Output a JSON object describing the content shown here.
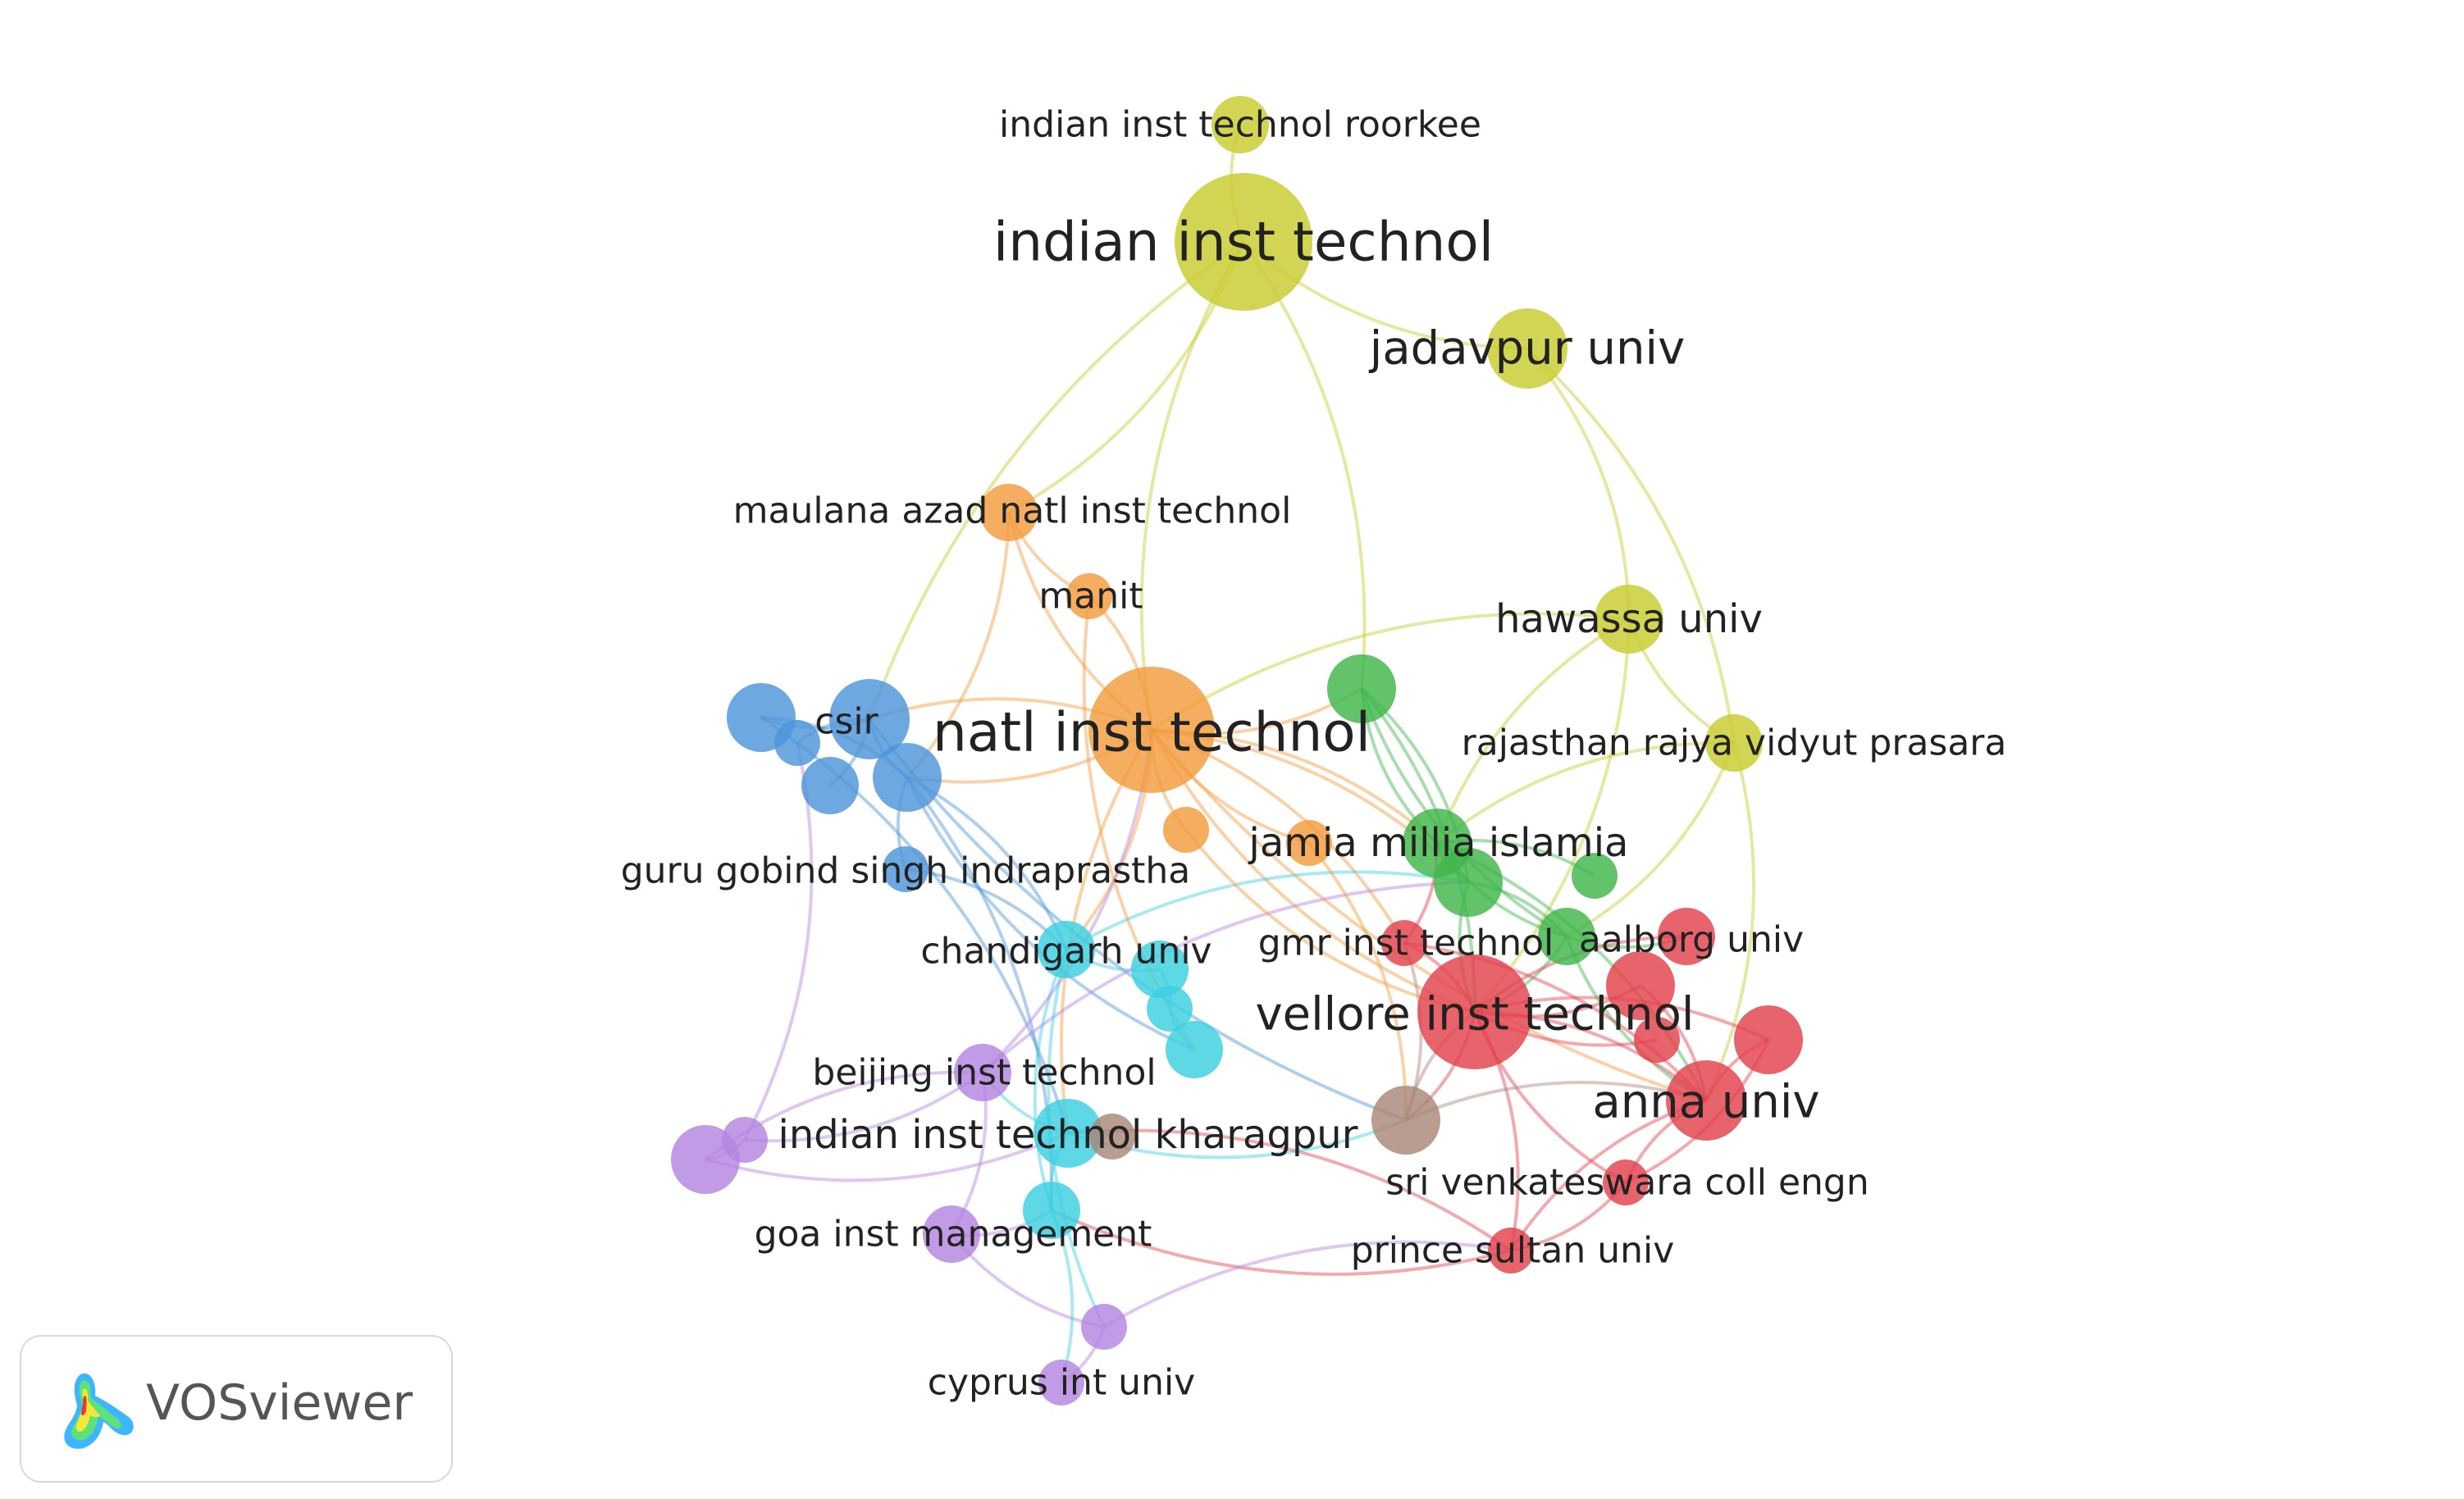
{
  "app": {
    "name": "VOSviewer"
  },
  "network": {
    "nodes": [
      {
        "id": "iit",
        "label": "indian inst technol",
        "cluster": "yellow",
        "weight": 10,
        "label_size": "xl"
      },
      {
        "id": "iitr",
        "label": "indian inst technol roorkee",
        "cluster": "yellow",
        "weight": 3,
        "label_size": "m"
      },
      {
        "id": "jadavpur",
        "label": "jadavpur univ",
        "cluster": "yellow",
        "weight": 5,
        "label_size": "l"
      },
      {
        "id": "hawassa",
        "label": "hawassa univ",
        "cluster": "yellow",
        "weight": 4,
        "label_size": "ml"
      },
      {
        "id": "rajasthan",
        "label": "rajasthan rajya vidyut prasara",
        "cluster": "yellow",
        "weight": 3,
        "label_size": "m"
      },
      {
        "id": "manit_azad",
        "label": "maulana azad natl inst technol",
        "cluster": "orange",
        "weight": 3,
        "label_size": "m"
      },
      {
        "id": "manit",
        "label": "manit",
        "cluster": "orange",
        "weight": 2,
        "label_size": "m"
      },
      {
        "id": "nit",
        "label": "natl inst technol",
        "cluster": "orange",
        "weight": 9,
        "label_size": "xl"
      },
      {
        "id": "orange_small",
        "label": "",
        "cluster": "orange",
        "weight": 2
      },
      {
        "id": "orange_small2",
        "label": "",
        "cluster": "orange",
        "weight": 2
      },
      {
        "id": "csir",
        "label": "csir",
        "cluster": "blue",
        "weight": 5,
        "label_size": "m"
      },
      {
        "id": "blue1",
        "label": "",
        "cluster": "blue",
        "weight": 4
      },
      {
        "id": "blue2",
        "label": "",
        "cluster": "blue",
        "weight": 2
      },
      {
        "id": "blue3",
        "label": "",
        "cluster": "blue",
        "weight": 3
      },
      {
        "id": "blue4",
        "label": "",
        "cluster": "blue",
        "weight": 4
      },
      {
        "id": "ggsip",
        "label": "guru gobind singh indraprastha",
        "cluster": "blue",
        "weight": 2,
        "label_size": "m"
      },
      {
        "id": "green1",
        "label": "",
        "cluster": "green",
        "weight": 4
      },
      {
        "id": "jamia",
        "label": "jamia millia islamia",
        "cluster": "green",
        "weight": 4,
        "label_size": "ml"
      },
      {
        "id": "green2",
        "label": "",
        "cluster": "green",
        "weight": 4
      },
      {
        "id": "green3",
        "label": "",
        "cluster": "green",
        "weight": 2
      },
      {
        "id": "green4",
        "label": "",
        "cluster": "green",
        "weight": 3
      },
      {
        "id": "green5",
        "label": "",
        "cluster": "green",
        "weight": 3
      },
      {
        "id": "gmr",
        "label": "gmr inst technol",
        "cluster": "red",
        "weight": 2,
        "label_size": "m"
      },
      {
        "id": "aalborg",
        "label": "aalborg univ",
        "cluster": "red",
        "weight": 3,
        "label_size": "m"
      },
      {
        "id": "vit",
        "label": "vellore inst technol",
        "cluster": "red",
        "weight": 8,
        "label_size": "l"
      },
      {
        "id": "red1",
        "label": "",
        "cluster": "red",
        "weight": 4
      },
      {
        "id": "red2",
        "label": "",
        "cluster": "red",
        "weight": 4
      },
      {
        "id": "red3",
        "label": "",
        "cluster": "red",
        "weight": 2
      },
      {
        "id": "anna",
        "label": "anna univ",
        "cluster": "red",
        "weight": 5,
        "label_size": "l"
      },
      {
        "id": "svce",
        "label": "sri venkateswara coll engn",
        "cluster": "red",
        "weight": 2,
        "label_size": "m"
      },
      {
        "id": "prince",
        "label": "prince sultan univ",
        "cluster": "red",
        "weight": 2,
        "label_size": "m"
      },
      {
        "id": "chandigarh",
        "label": "chandigarh univ",
        "cluster": "cyan",
        "weight": 3,
        "label_size": "m"
      },
      {
        "id": "cyan1",
        "label": "",
        "cluster": "cyan",
        "weight": 3
      },
      {
        "id": "cyan2",
        "label": "",
        "cluster": "cyan",
        "weight": 2
      },
      {
        "id": "cyan3",
        "label": "",
        "cluster": "cyan",
        "weight": 3
      },
      {
        "id": "iitkgp",
        "label": "indian inst technol kharagpur",
        "cluster": "cyan",
        "weight": 4,
        "label_size": "ml"
      },
      {
        "id": "cyan4",
        "label": "",
        "cluster": "cyan",
        "weight": 3
      },
      {
        "id": "brown1",
        "label": "",
        "cluster": "brown",
        "weight": 4
      },
      {
        "id": "brown2",
        "label": "",
        "cluster": "brown",
        "weight": 2
      },
      {
        "id": "beijing",
        "label": "beijing inst technol",
        "cluster": "purple",
        "weight": 3,
        "label_size": "m"
      },
      {
        "id": "purple1",
        "label": "",
        "cluster": "purple",
        "weight": 4
      },
      {
        "id": "purple2",
        "label": "",
        "cluster": "purple",
        "weight": 2
      },
      {
        "id": "goa",
        "label": "goa inst management",
        "cluster": "purple",
        "weight": 3,
        "label_size": "m"
      },
      {
        "id": "purple3",
        "label": "",
        "cluster": "purple",
        "weight": 2
      },
      {
        "id": "cyprus",
        "label": "cyprus int univ",
        "cluster": "purple",
        "weight": 2,
        "label_size": "m"
      }
    ],
    "links": [
      [
        "iit",
        "iitr"
      ],
      [
        "iit",
        "jadavpur"
      ],
      [
        "iit",
        "green1"
      ],
      [
        "iit",
        "nit"
      ],
      [
        "iit",
        "manit_azad"
      ],
      [
        "iit",
        "csir"
      ],
      [
        "jadavpur",
        "hawassa"
      ],
      [
        "hawassa",
        "rajasthan"
      ],
      [
        "jadavpur",
        "rajasthan"
      ],
      [
        "hawassa",
        "jamia"
      ],
      [
        "hawassa",
        "vit"
      ],
      [
        "hawassa",
        "nit"
      ],
      [
        "rajasthan",
        "anna"
      ],
      [
        "rajasthan",
        "jamia"
      ],
      [
        "rajasthan",
        "green4"
      ],
      [
        "manit_azad",
        "nit"
      ],
      [
        "manit",
        "nit"
      ],
      [
        "manit_azad",
        "manit"
      ],
      [
        "manit_azad",
        "blue4"
      ],
      [
        "nit",
        "csir"
      ],
      [
        "nit",
        "blue4"
      ],
      [
        "nit",
        "green1"
      ],
      [
        "nit",
        "jamia"
      ],
      [
        "nit",
        "vit"
      ],
      [
        "nit",
        "green2"
      ],
      [
        "nit",
        "orange_small"
      ],
      [
        "nit",
        "gmr"
      ],
      [
        "nit",
        "anna"
      ],
      [
        "nit",
        "chandigarh"
      ],
      [
        "nit",
        "iitkgp"
      ],
      [
        "csir",
        "blue1"
      ],
      [
        "csir",
        "blue2"
      ],
      [
        "csir",
        "blue3"
      ],
      [
        "csir",
        "blue4"
      ],
      [
        "blue1",
        "blue4"
      ],
      [
        "blue4",
        "ggsip"
      ],
      [
        "blue4",
        "chandigarh"
      ],
      [
        "blue4",
        "cyan3"
      ],
      [
        "blue4",
        "cyan4"
      ],
      [
        "csir",
        "brown1"
      ],
      [
        "blue1",
        "iitkgp"
      ],
      [
        "green1",
        "jamia"
      ],
      [
        "green1",
        "green2"
      ],
      [
        "green1",
        "green4"
      ],
      [
        "green1",
        "vit"
      ],
      [
        "jamia",
        "green2"
      ],
      [
        "jamia",
        "green3"
      ],
      [
        "jamia",
        "green4"
      ],
      [
        "green2",
        "green4"
      ],
      [
        "green4",
        "aalborg"
      ],
      [
        "green4",
        "vit"
      ],
      [
        "green2",
        "vit"
      ],
      [
        "jamia",
        "anna"
      ],
      [
        "green4",
        "anna"
      ],
      [
        "vit",
        "aalborg"
      ],
      [
        "vit",
        "red1"
      ],
      [
        "vit",
        "red2"
      ],
      [
        "vit",
        "red3"
      ],
      [
        "vit",
        "anna"
      ],
      [
        "vit",
        "svce"
      ],
      [
        "vit",
        "prince"
      ],
      [
        "vit",
        "gmr"
      ],
      [
        "vit",
        "brown1"
      ],
      [
        "anna",
        "red1"
      ],
      [
        "anna",
        "red2"
      ],
      [
        "anna",
        "svce"
      ],
      [
        "red2",
        "svce"
      ],
      [
        "prince",
        "svce"
      ],
      [
        "prince",
        "anna"
      ],
      [
        "prince",
        "iitkgp"
      ],
      [
        "prince",
        "cyan4"
      ],
      [
        "chandigarh",
        "cyan1"
      ],
      [
        "chandigarh",
        "green2"
      ],
      [
        "chandigarh",
        "cyan4"
      ],
      [
        "cyan1",
        "cyan2"
      ],
      [
        "cyan2",
        "cyan3"
      ],
      [
        "iitkgp",
        "brown2"
      ],
      [
        "iitkgp",
        "brown1"
      ],
      [
        "brown1",
        "vit"
      ],
      [
        "brown1",
        "gmr"
      ],
      [
        "brown1",
        "anna"
      ],
      [
        "iitkgp",
        "cyan4"
      ],
      [
        "iitkgp",
        "beijing"
      ],
      [
        "beijing",
        "purple1"
      ],
      [
        "beijing",
        "purple2"
      ],
      [
        "purple1",
        "purple2"
      ],
      [
        "beijing",
        "goa"
      ],
      [
        "goa",
        "purple3"
      ],
      [
        "purple3",
        "cyprus"
      ],
      [
        "purple1",
        "iitkgp"
      ],
      [
        "purple3",
        "prince"
      ],
      [
        "goa",
        "cyan4"
      ],
      [
        "cyan4",
        "cyprus"
      ],
      [
        "purple2",
        "blue2"
      ],
      [
        "beijing",
        "green2"
      ],
      [
        "beijing",
        "nit"
      ],
      [
        "orange_small",
        "brown1"
      ],
      [
        "orange_small2",
        "vit"
      ],
      [
        "orange_small2",
        "nit"
      ],
      [
        "gmr",
        "jamia"
      ],
      [
        "gmr",
        "anna"
      ],
      [
        "chandigarh",
        "purple3"
      ],
      [
        "ggsip",
        "chandigarh"
      ],
      [
        "manit",
        "cyan3"
      ]
    ]
  },
  "colors": {
    "yellow": "#c8cc2e",
    "orange": "#f39b3d",
    "blue": "#4d95d9",
    "green": "#3fb64a",
    "red": "#e3424d",
    "cyan": "#3cd0e0",
    "brown": "#a88878",
    "purple": "#b585e0"
  }
}
